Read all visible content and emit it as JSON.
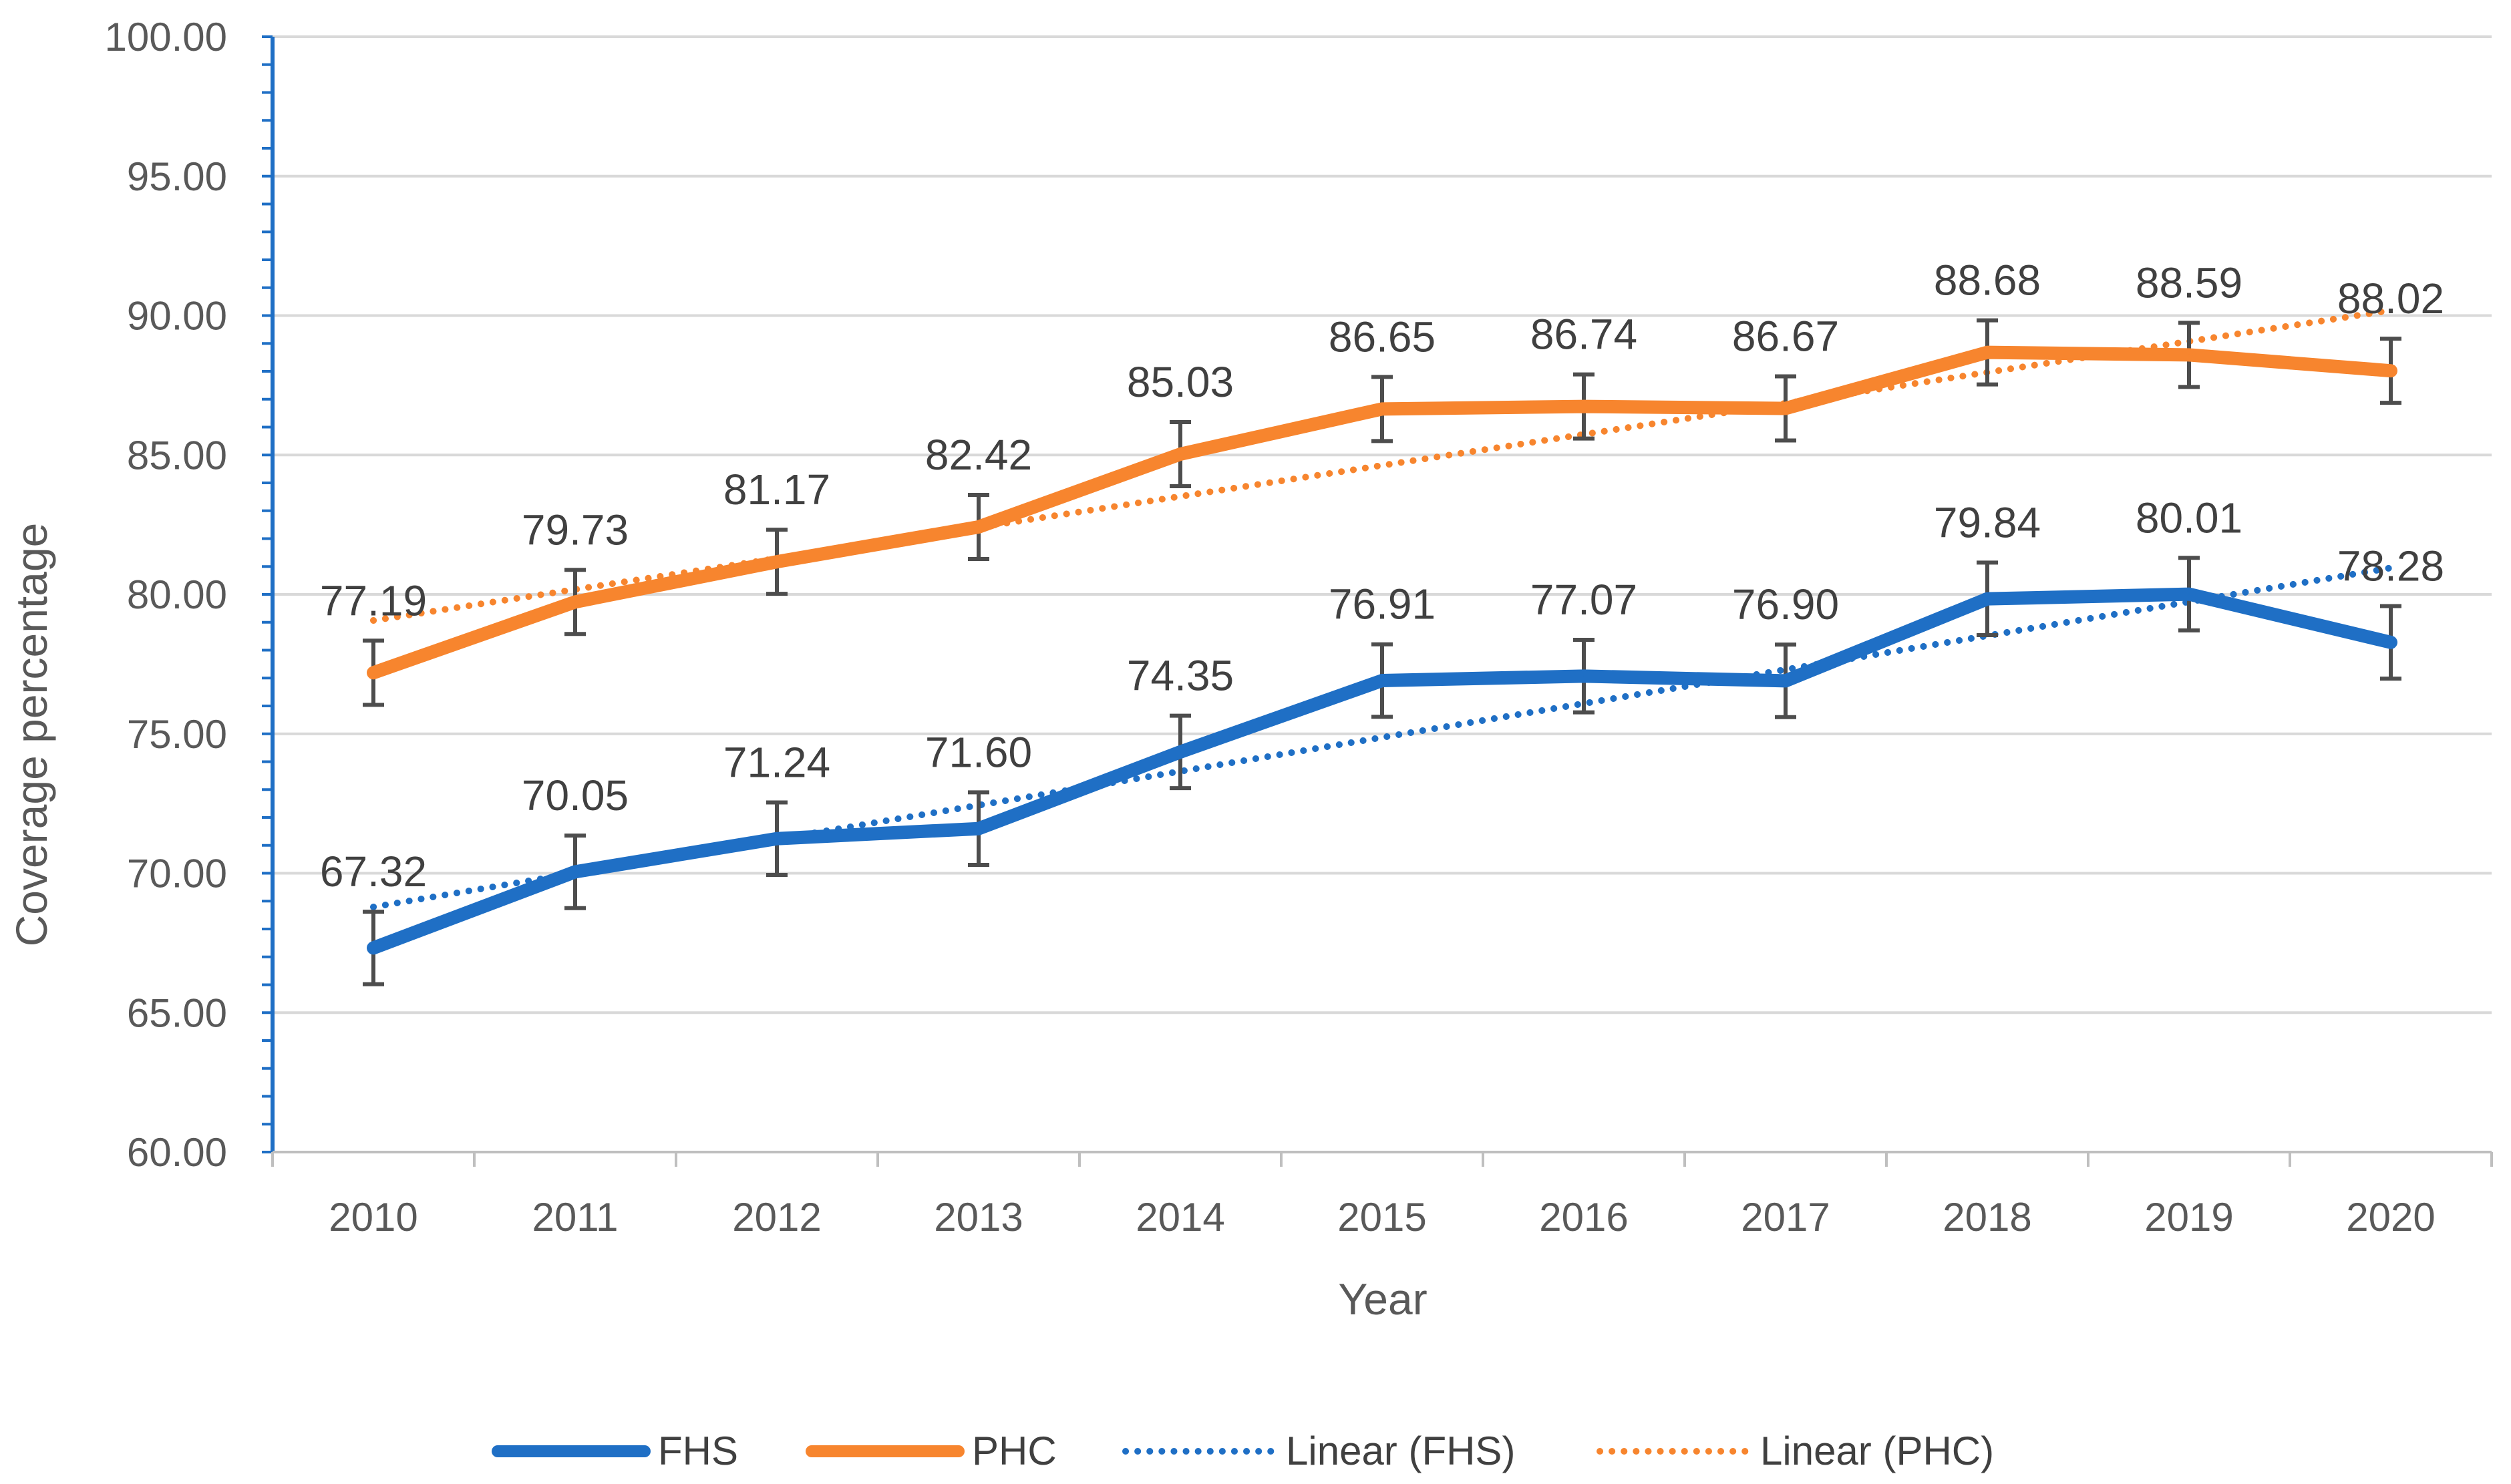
{
  "colors": {
    "fhs": "#1f6fc5",
    "phc": "#f7852e",
    "grid": "#d9d9d9",
    "axis": "#1f6fc5",
    "error_bar": "#4d4d4d"
  },
  "chart_data": {
    "type": "line",
    "xlabel": "Year",
    "ylabel": "Coverage percentage",
    "x": [
      "2010",
      "2011",
      "2012",
      "2013",
      "2014",
      "2015",
      "2016",
      "2017",
      "2018",
      "2019",
      "2020"
    ],
    "ylim": [
      60,
      100
    ],
    "y_ticks": [
      "60.00",
      "65.00",
      "70.00",
      "75.00",
      "80.00",
      "85.00",
      "90.00",
      "95.00",
      "100.00"
    ],
    "grid": true,
    "legend_position": "bottom",
    "series": [
      {
        "name": "FHS",
        "values": [
          67.32,
          70.05,
          71.24,
          71.6,
          74.35,
          76.91,
          77.07,
          76.9,
          79.84,
          80.01,
          78.28
        ],
        "labels": [
          "67.32",
          "70.05",
          "71.24",
          "71.60",
          "74.35",
          "76.91",
          "77.07",
          "76.90",
          "79.84",
          "80.01",
          "78.28"
        ],
        "error": 1.3,
        "style": "solid"
      },
      {
        "name": "PHC",
        "values": [
          77.19,
          79.73,
          81.17,
          82.42,
          85.03,
          86.65,
          86.74,
          86.67,
          88.68,
          88.59,
          88.02
        ],
        "labels": [
          "77.19",
          "79.73",
          "81.17",
          "82.42",
          "85.03",
          "86.65",
          "86.74",
          "86.67",
          "88.68",
          "88.59",
          "88.02"
        ],
        "error": 1.15,
        "style": "solid"
      }
    ],
    "trendlines": [
      {
        "name": "Linear (FHS)",
        "of": "FHS",
        "type": "linear",
        "style": "dotted"
      },
      {
        "name": "Linear (PHC)",
        "of": "PHC",
        "type": "linear",
        "style": "dotted"
      }
    ]
  }
}
